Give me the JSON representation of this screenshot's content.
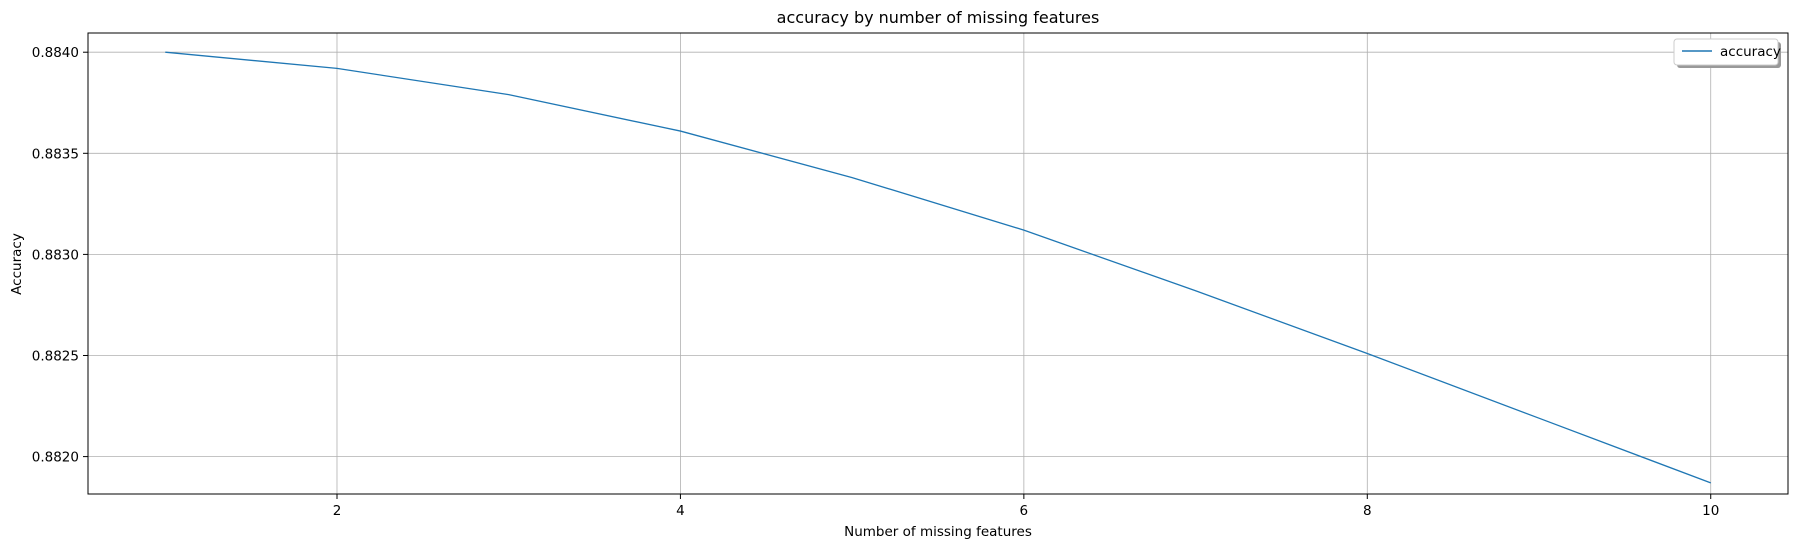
{
  "chart_data": {
    "type": "line",
    "title": "accuracy by number of missing features",
    "xlabel": "Number of missing features",
    "ylabel": "Accuracy",
    "x": [
      1,
      2,
      3,
      4,
      5,
      6,
      7,
      8,
      9,
      10
    ],
    "series": [
      {
        "name": "accuracy",
        "color": "#1f77b4",
        "values": [
          0.884,
          0.88392,
          0.88379,
          0.88361,
          0.88338,
          0.88312,
          0.88282,
          0.88251,
          0.88219,
          0.88187
        ]
      }
    ],
    "xlim": [
      0.55,
      10.45
    ],
    "ylim": [
      0.881815,
      0.884095
    ],
    "xticks": [
      2,
      4,
      6,
      8,
      10
    ],
    "xtick_labels": [
      "2",
      "4",
      "6",
      "8",
      "10"
    ],
    "yticks": [
      0.882,
      0.8825,
      0.883,
      0.8835,
      0.884
    ],
    "ytick_labels": [
      "0.8820",
      "0.8825",
      "0.8830",
      "0.8835",
      "0.8840"
    ],
    "grid": true,
    "legend_position": "top-right"
  }
}
